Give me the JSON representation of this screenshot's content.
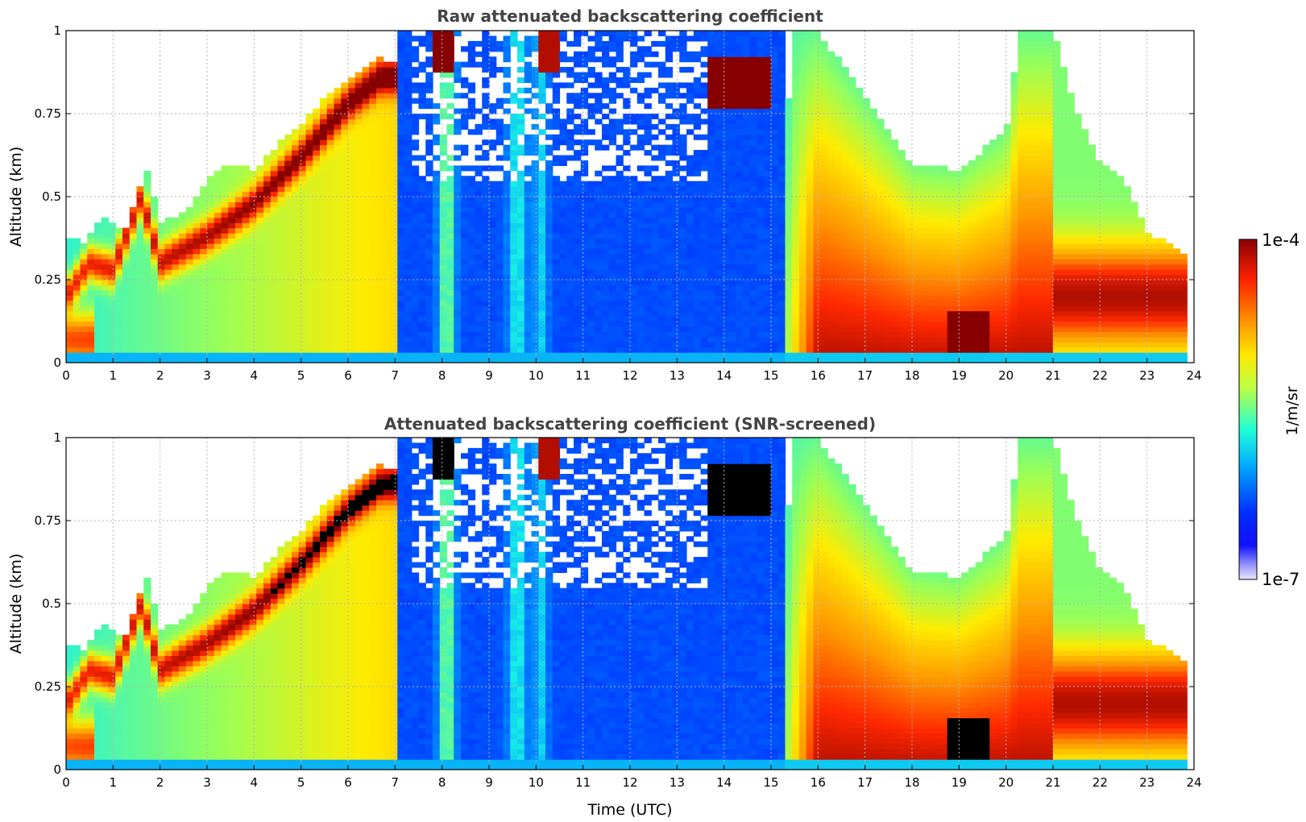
{
  "chart_data": [
    {
      "type": "heatmap",
      "title": "Raw attenuated backscattering coefficient",
      "xlabel": "",
      "ylabel": "Altitude (km)",
      "xlim": [
        0,
        24
      ],
      "ylim": [
        0,
        1
      ],
      "xticks": [
        "0",
        "1",
        "2",
        "3",
        "4",
        "5",
        "6",
        "7",
        "8",
        "9",
        "10",
        "11",
        "12",
        "13",
        "14",
        "15",
        "16",
        "17",
        "18",
        "19",
        "20",
        "21",
        "22",
        "23",
        "24"
      ],
      "yticks": [
        "0",
        "0.25",
        "0.5",
        "0.75",
        "1"
      ],
      "grid": true,
      "screening": "none",
      "key_features": [
        {
          "name": "boundary layer top",
          "times": [
            0,
            1,
            2,
            3,
            4,
            5,
            6,
            6.7
          ],
          "altitudes": [
            0.35,
            0.42,
            0.42,
            0.5,
            0.55,
            0.65,
            0.8,
            0.88
          ]
        },
        {
          "name": "low cloud",
          "time_range": [
            7.8,
            8.3
          ],
          "altitude_range": [
            0.88,
            1.0
          ]
        },
        {
          "name": "low cloud",
          "time_range": [
            14.0,
            15.0
          ],
          "altitude_range": [
            0.75,
            0.9
          ]
        },
        {
          "name": "dense aerosol",
          "time_range": [
            15.2,
            21.0
          ],
          "altitude_range": [
            0.0,
            0.3
          ]
        },
        {
          "name": "aerosol plume",
          "time_range": [
            21.0,
            23.8
          ],
          "altitude_range": [
            0.05,
            0.35
          ]
        }
      ]
    },
    {
      "type": "heatmap",
      "title": "Attenuated backscattering coefficient (SNR-screened)",
      "xlabel": "Time (UTC)",
      "ylabel": "Altitude (km)",
      "xlim": [
        0,
        24
      ],
      "ylim": [
        0,
        1
      ],
      "xticks": [
        "0",
        "1",
        "2",
        "3",
        "4",
        "5",
        "6",
        "7",
        "8",
        "9",
        "10",
        "11",
        "12",
        "13",
        "14",
        "15",
        "16",
        "17",
        "18",
        "19",
        "20",
        "21",
        "22",
        "23",
        "24"
      ],
      "yticks": [
        "0",
        "0.25",
        "0.5",
        "0.75",
        "1"
      ],
      "grid": true,
      "screening": "SNR",
      "saturated_color": "#000000"
    }
  ],
  "colorbar": {
    "label": "1/m/sr",
    "max_label": "1e-4",
    "min_label": "1e-7",
    "scale": "log",
    "range": [
      1e-07,
      0.0001
    ],
    "colormap": "jet",
    "bottom_color": "#e8e8ff"
  }
}
